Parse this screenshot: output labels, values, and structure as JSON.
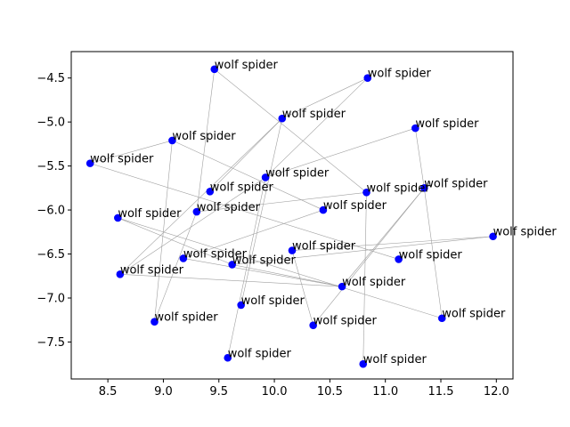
{
  "chart_data": {
    "type": "scatter",
    "title": "",
    "xlabel": "",
    "ylabel": "",
    "xlim": [
      8.17,
      12.15
    ],
    "ylim": [
      -7.92,
      -4.2
    ],
    "xticks": [
      "8.5",
      "9.0",
      "9.5",
      "10.0",
      "10.5",
      "11.0",
      "11.5",
      "12.0"
    ],
    "xtick_values": [
      8.5,
      9.0,
      9.5,
      10.0,
      10.5,
      11.0,
      11.5,
      12.0
    ],
    "yticks": [
      "−4.5",
      "−5.0",
      "−5.5",
      "−6.0",
      "−6.5",
      "−7.0",
      "−7.5"
    ],
    "ytick_values": [
      -4.5,
      -5.0,
      -5.5,
      -6.0,
      -6.5,
      -7.0,
      -7.5
    ],
    "grid": false,
    "marker_color": "#0000ff",
    "edge_color": "#a0a0a0",
    "points": [
      {
        "x": 9.46,
        "y": -4.4,
        "label": "wolf spider"
      },
      {
        "x": 10.84,
        "y": -4.5,
        "label": "wolf spider"
      },
      {
        "x": 10.07,
        "y": -4.96,
        "label": "wolf spider"
      },
      {
        "x": 9.08,
        "y": -5.21,
        "label": "wolf spider"
      },
      {
        "x": 11.27,
        "y": -5.07,
        "label": "wolf spider"
      },
      {
        "x": 8.34,
        "y": -5.47,
        "label": "wolf spider"
      },
      {
        "x": 9.92,
        "y": -5.63,
        "label": "wolf spider"
      },
      {
        "x": 11.35,
        "y": -5.75,
        "label": "wolf spider"
      },
      {
        "x": 9.42,
        "y": -5.79,
        "label": "wolf spider"
      },
      {
        "x": 10.83,
        "y": -5.8,
        "label": "wolf spider"
      },
      {
        "x": 10.44,
        "y": -6.0,
        "label": "wolf spider"
      },
      {
        "x": 9.3,
        "y": -6.02,
        "label": "wolf spider"
      },
      {
        "x": 8.59,
        "y": -6.09,
        "label": "wolf spider"
      },
      {
        "x": 11.97,
        "y": -6.3,
        "label": "wolf spider"
      },
      {
        "x": 10.16,
        "y": -6.46,
        "label": "wolf spider"
      },
      {
        "x": 11.12,
        "y": -6.56,
        "label": "wolf spider"
      },
      {
        "x": 9.18,
        "y": -6.55,
        "label": "wolf spider"
      },
      {
        "x": 9.62,
        "y": -6.62,
        "label": "wolf spider"
      },
      {
        "x": 8.61,
        "y": -6.73,
        "label": "wolf spider"
      },
      {
        "x": 10.61,
        "y": -6.87,
        "label": "wolf spider"
      },
      {
        "x": 9.7,
        "y": -7.08,
        "label": "wolf spider"
      },
      {
        "x": 11.51,
        "y": -7.23,
        "label": "wolf spider"
      },
      {
        "x": 8.92,
        "y": -7.27,
        "label": "wolf spider"
      },
      {
        "x": 10.35,
        "y": -7.31,
        "label": "wolf spider"
      },
      {
        "x": 9.58,
        "y": -7.68,
        "label": "wolf spider"
      },
      {
        "x": 10.8,
        "y": -7.75,
        "label": "wolf spider"
      }
    ],
    "edges": [
      [
        0,
        11
      ],
      [
        1,
        2
      ],
      [
        1,
        6
      ],
      [
        2,
        8
      ],
      [
        2,
        18
      ],
      [
        2,
        20
      ],
      [
        3,
        5
      ],
      [
        3,
        10
      ],
      [
        3,
        22
      ],
      [
        4,
        6
      ],
      [
        5,
        15
      ],
      [
        6,
        24
      ],
      [
        7,
        4
      ],
      [
        7,
        19
      ],
      [
        7,
        21
      ],
      [
        9,
        0
      ],
      [
        9,
        11
      ],
      [
        9,
        25
      ],
      [
        11,
        22
      ],
      [
        12,
        17
      ],
      [
        12,
        21
      ],
      [
        13,
        14
      ],
      [
        14,
        23
      ],
      [
        16,
        10
      ],
      [
        17,
        13
      ],
      [
        17,
        19
      ],
      [
        18,
        6
      ],
      [
        19,
        16
      ],
      [
        19,
        18
      ],
      [
        23,
        7
      ]
    ]
  }
}
